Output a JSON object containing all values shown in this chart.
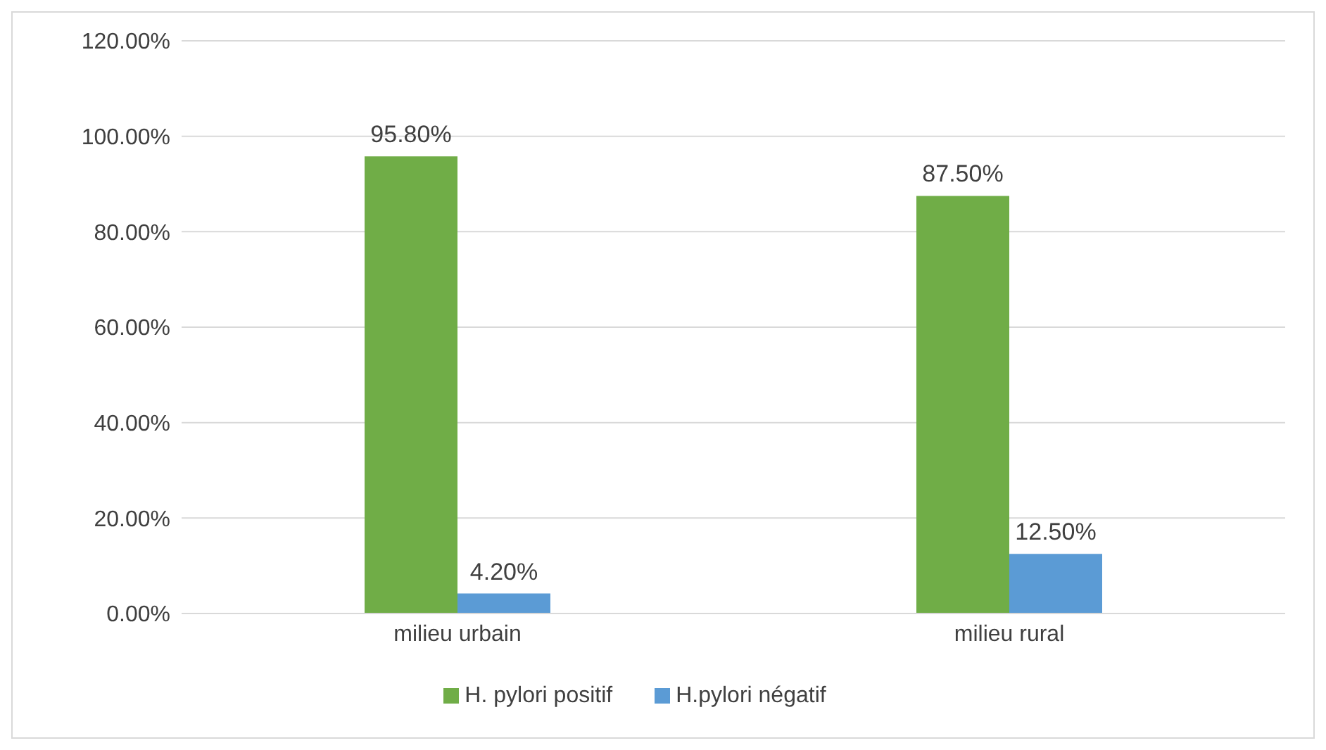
{
  "chart_data": {
    "type": "bar",
    "categories": [
      "milieu urbain",
      "milieu rural"
    ],
    "series": [
      {
        "name": "H. pylori positif",
        "color": "#70ad47",
        "values": [
          95.8,
          87.5
        ],
        "value_labels": [
          "95.80%",
          "87.50%"
        ]
      },
      {
        "name": "H.pylori négatif",
        "color": "#5b9bd5",
        "values": [
          4.2,
          12.5
        ],
        "value_labels": [
          "4.20%",
          "12.50%"
        ]
      }
    ],
    "ylim": [
      0,
      120
    ],
    "yticks": [
      {
        "value": 0,
        "label": "0.00%"
      },
      {
        "value": 20,
        "label": "20.00%"
      },
      {
        "value": 40,
        "label": "40.00%"
      },
      {
        "value": 60,
        "label": "60.00%"
      },
      {
        "value": 80,
        "label": "80.00%"
      },
      {
        "value": 100,
        "label": "100.00%"
      },
      {
        "value": 120,
        "label": "120.00%"
      }
    ],
    "grid": "y",
    "legend": "bottom"
  }
}
